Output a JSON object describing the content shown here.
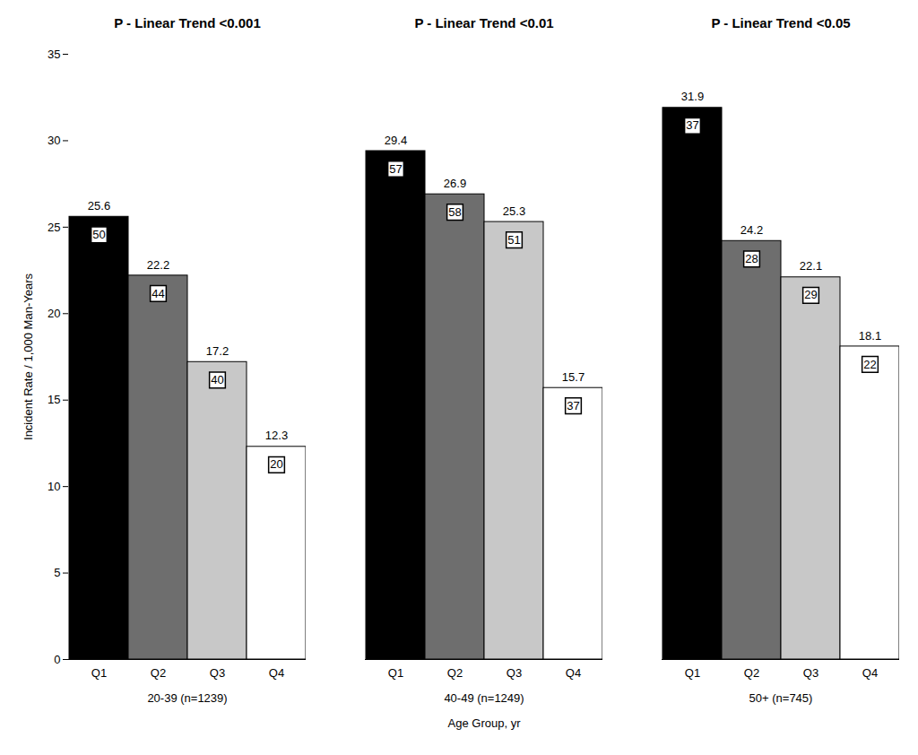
{
  "chart_data": {
    "type": "bar",
    "x_label": "Age Group, yr",
    "y_label": "Incident Rate / 1,000 Man-Years",
    "categories": [
      "20-39 (n=1239)",
      "40-49 (n=1249)",
      "50+ (n=745)"
    ],
    "annotations": [
      "P - Linear Trend <0.001",
      "P - Linear Trend <0.01",
      "P - Linear Trend <0.05"
    ],
    "series": [
      {
        "name": "Q1",
        "color": "#000000",
        "values": [
          25.6,
          29.4,
          31.9
        ],
        "counts": [
          50,
          57,
          37
        ]
      },
      {
        "name": "Q2",
        "color": "#6e6e6e",
        "values": [
          22.2,
          26.9,
          24.2
        ],
        "counts": [
          44,
          58,
          28
        ]
      },
      {
        "name": "Q3",
        "color": "#c8c8c8",
        "values": [
          17.2,
          25.3,
          22.1
        ],
        "counts": [
          40,
          51,
          29
        ]
      },
      {
        "name": "Q4",
        "color": "#ffffff",
        "values": [
          12.3,
          15.7,
          18.1
        ],
        "counts": [
          20,
          37,
          22
        ]
      }
    ],
    "ylim": [
      0,
      35
    ],
    "yticks": [
      0,
      5,
      10,
      15,
      20,
      25,
      30,
      35
    ],
    "data_labels": true
  }
}
